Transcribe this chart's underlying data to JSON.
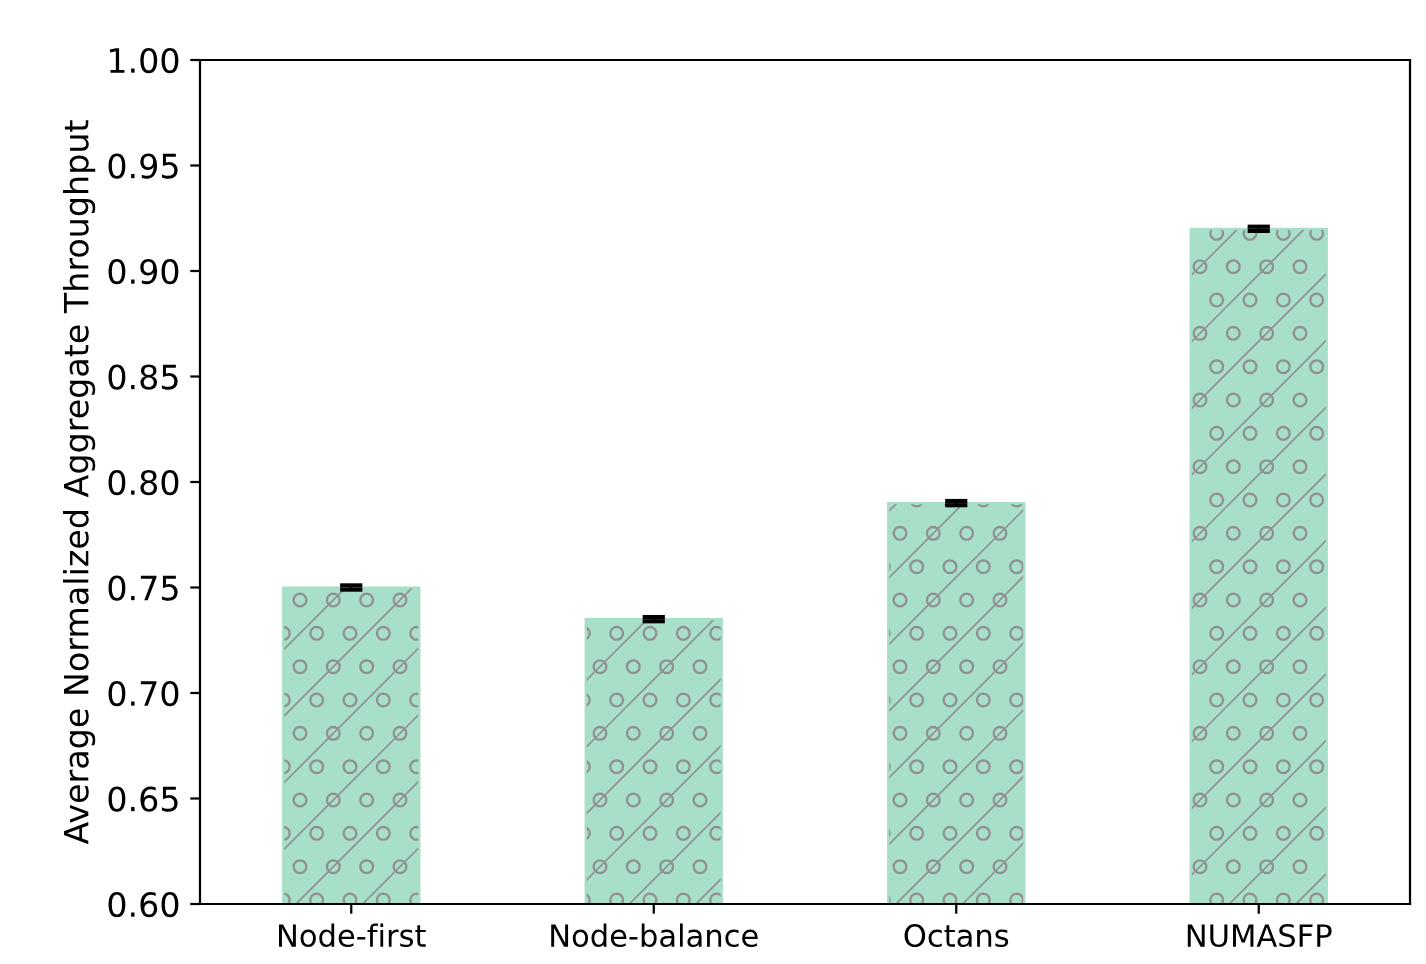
{
  "chart_data": {
    "type": "bar",
    "ylabel": "Average Normalized Aggregate Throughput",
    "categories": [
      "Node-first",
      "Node-balance",
      "Octans",
      "NUMASFP"
    ],
    "values": [
      0.75,
      0.735,
      0.79,
      0.92
    ],
    "errors": [
      0.001,
      0.001,
      0.001,
      0.001
    ],
    "color": "#a8dfc9",
    "ylim": [
      0.6,
      1.0
    ],
    "yticks": [
      {
        "value": 0.6,
        "label": "0.60"
      },
      {
        "value": 0.65,
        "label": "0.65"
      },
      {
        "value": 0.7,
        "label": "0.70"
      },
      {
        "value": 0.75,
        "label": "0.75"
      },
      {
        "value": 0.8,
        "label": "0.80"
      },
      {
        "value": 0.85,
        "label": "0.85"
      },
      {
        "value": 0.9,
        "label": "0.90"
      },
      {
        "value": 0.95,
        "label": "0.95"
      },
      {
        "value": 1.0,
        "label": "1.00"
      }
    ],
    "grid": false,
    "legend": false
  }
}
